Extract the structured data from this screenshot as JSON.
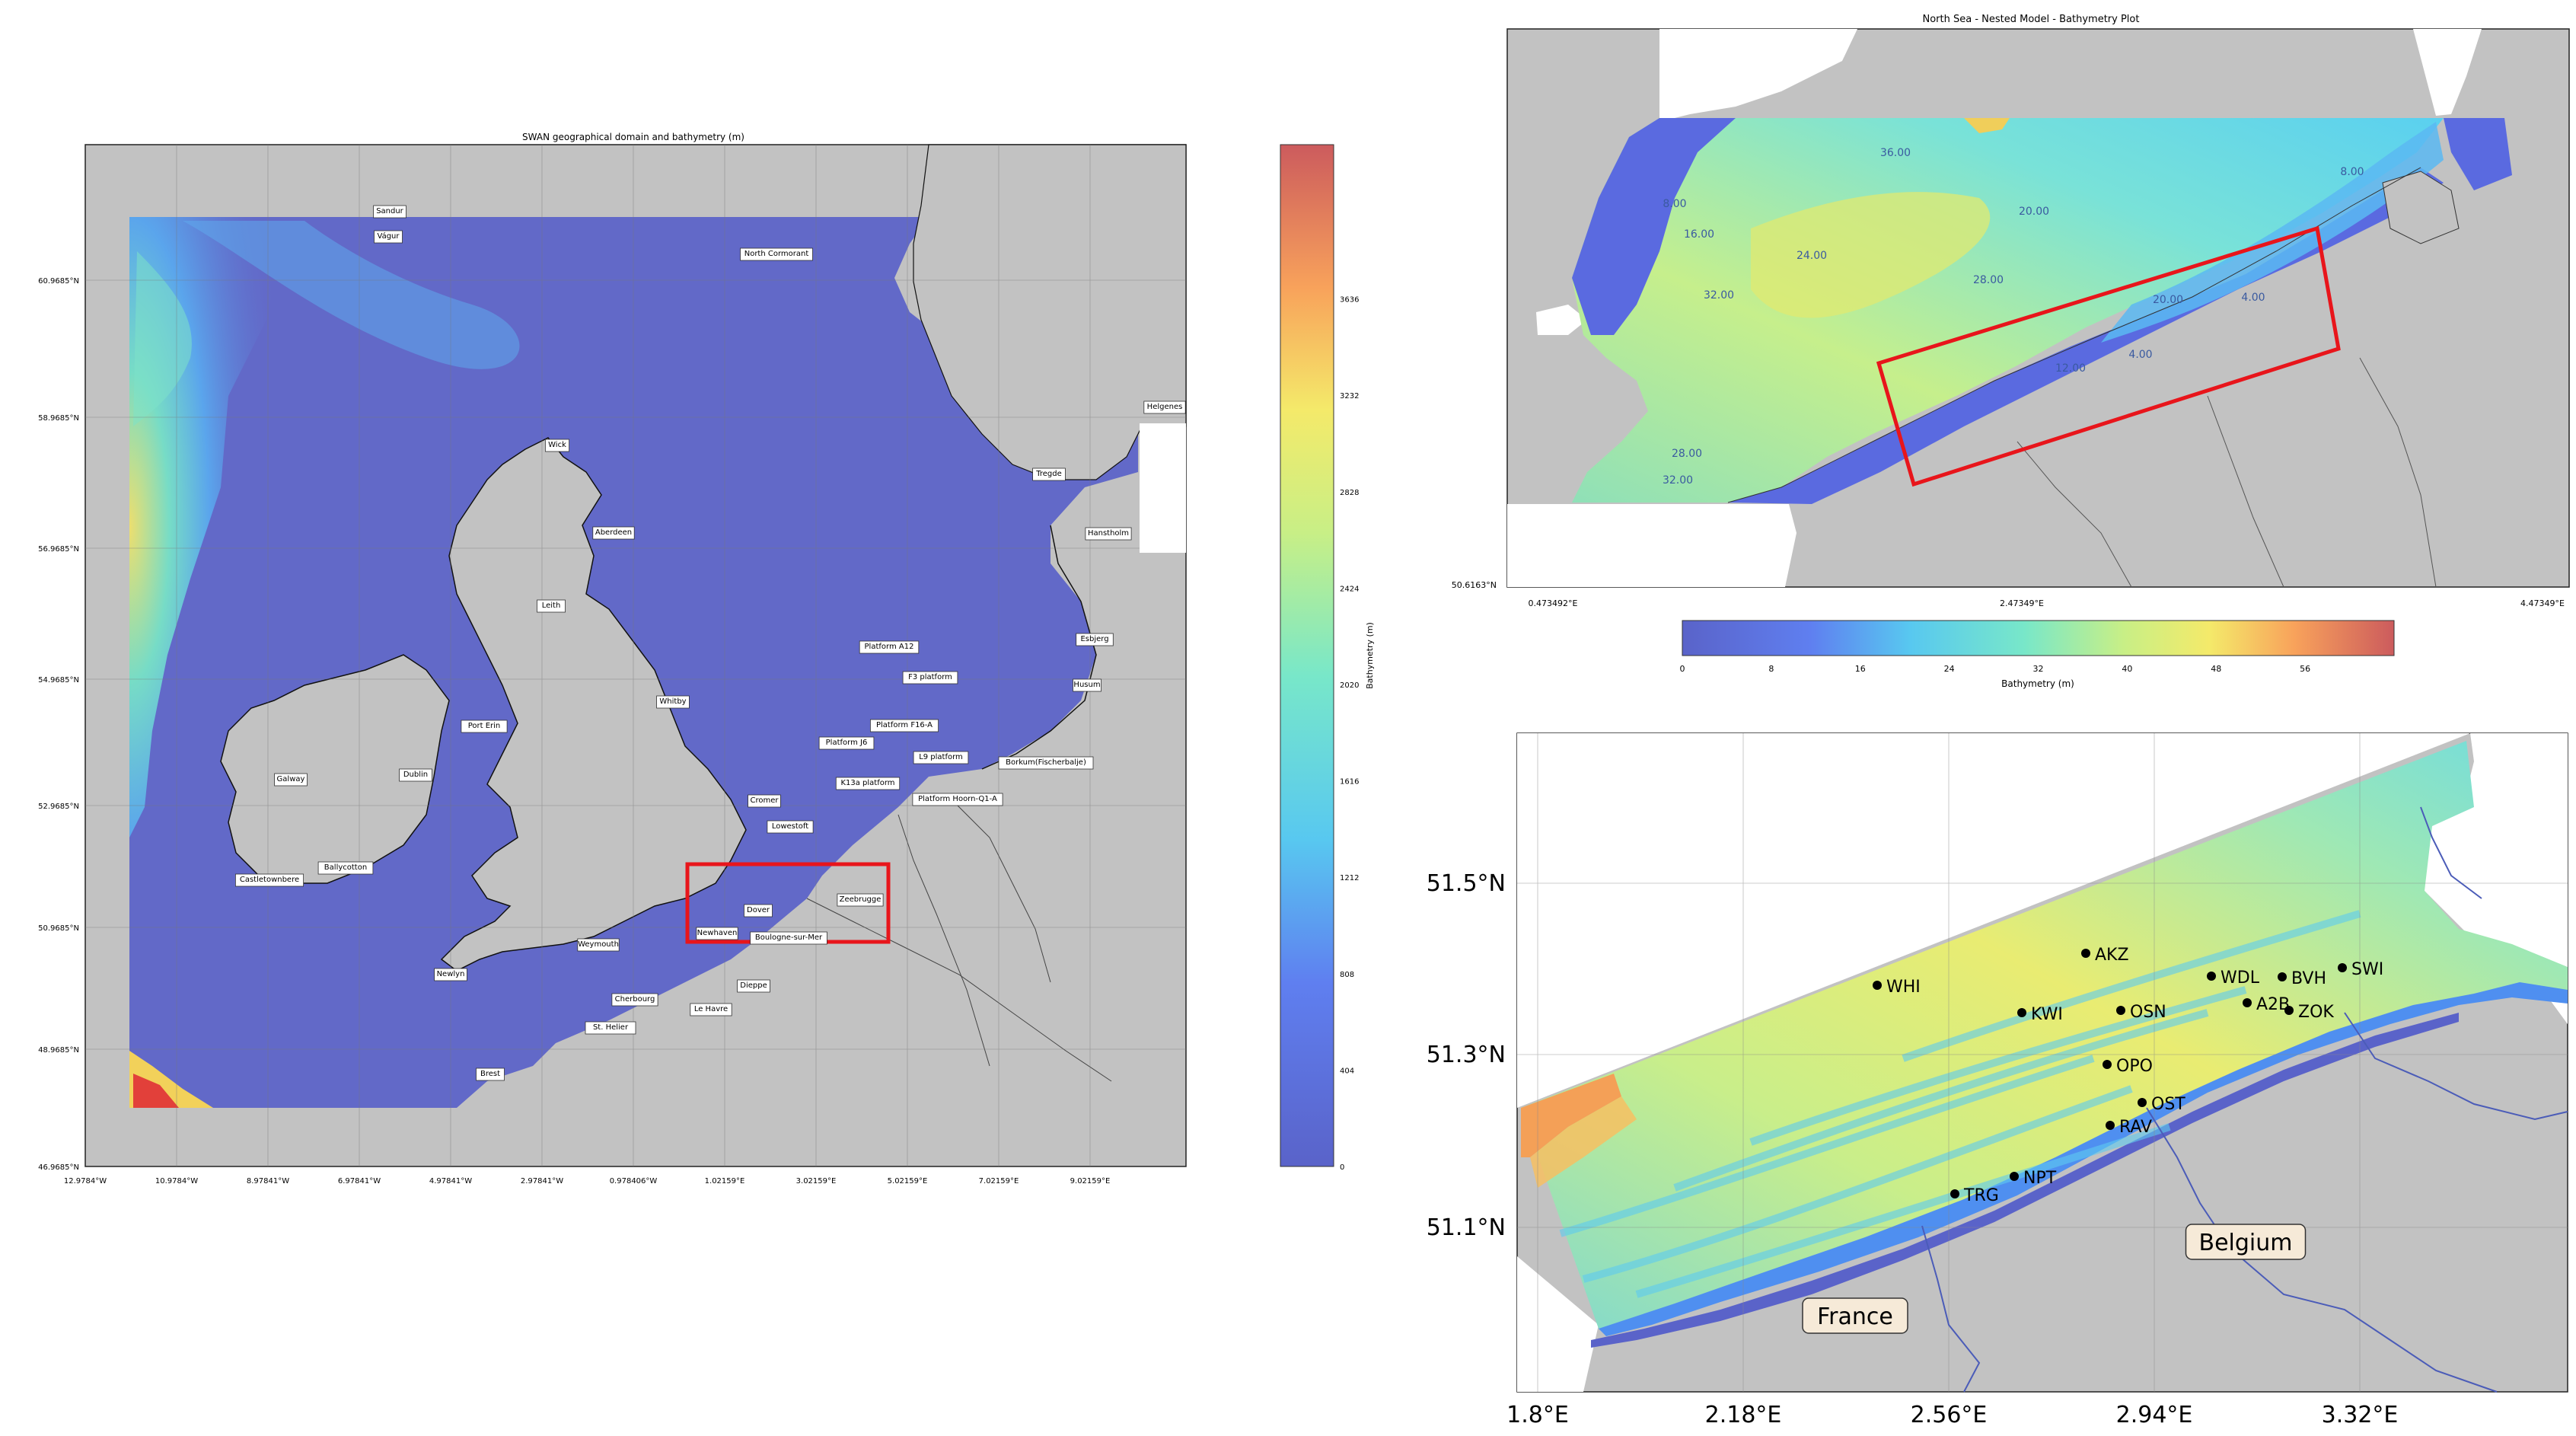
{
  "panel_a": {
    "title": "SWAN geographical domain and bathymetry (m)",
    "lat_ticks": [
      "60.9685°N",
      "58.9685°N",
      "56.9685°N",
      "54.9685°N",
      "52.9685°N",
      "50.9685°N",
      "48.9685°N",
      "46.9685°N"
    ],
    "lon_ticks": [
      "12.9784°W",
      "10.9784°W",
      "8.97841°W",
      "6.97841°W",
      "4.97841°W",
      "2.97841°W",
      "0.978406°W",
      "1.02159°E",
      "3.02159°E",
      "5.02159°E",
      "7.02159°E",
      "9.02159°E"
    ],
    "colorbar_label": "Bathymetry (m)",
    "colorbar_ticks": [
      "0",
      "404",
      "808",
      "1212",
      "1616",
      "2020",
      "2424",
      "2828",
      "3232",
      "3636"
    ],
    "places": [
      "Sandur",
      "Vágur",
      "North Cormorant",
      "Helgenes",
      "Wick",
      "Tregde",
      "Aberdeen",
      "Hanstholm",
      "Leith",
      "Platform A12",
      "Esbjerg",
      "F3 platform",
      "Husum",
      "Whitby",
      "Platform F16-A",
      "Port Erin",
      "Platform J6",
      "L9 platform",
      "Borkum(Fischerbalje)",
      "Galway",
      "Dublin",
      "K13a platform",
      "Cromer",
      "Platform Hoorn-Q1-A",
      "Lowestoft",
      "Ballycotton",
      "Castletownbere",
      "Zeebrugge",
      "Dover",
      "Newhaven",
      "Boulogne-sur-Mer",
      "Weymouth",
      "Newlyn",
      "Cherbourg",
      "Dieppe",
      "St. Helier",
      "Le Havre",
      "Brest"
    ]
  },
  "panel_b": {
    "title": "North Sea - Nested Model - Bathymetry Plot",
    "lat_tick": "50.6163°N",
    "lon_ticks": [
      "0.473492°E",
      "2.47349°E",
      "4.47349°E"
    ],
    "contour_labels": [
      "36.00",
      "8.00",
      "16.00",
      "24.00",
      "32.00",
      "20.00",
      "28.00",
      "20.00",
      "12.00",
      "4.00",
      "8.00",
      "28.00",
      "32.00",
      "4.00"
    ],
    "colorbar_label": "Bathymetry (m)",
    "colorbar_ticks": [
      "0",
      "8",
      "16",
      "24",
      "32",
      "40",
      "48",
      "56"
    ]
  },
  "panel_c": {
    "lat_ticks": [
      "51.5°N",
      "51.3°N",
      "51.1°N"
    ],
    "lon_ticks": [
      "1.8°E",
      "2.18°E",
      "2.56°E",
      "2.94°E",
      "3.32°E"
    ],
    "stations": [
      "WHI",
      "AKZ",
      "KWI",
      "OSN",
      "WDL",
      "BVH",
      "SWI",
      "A2B",
      "ZOK",
      "OPO",
      "OST",
      "RAV",
      "NPT",
      "TRG"
    ],
    "countries": [
      "France",
      "Belgium"
    ]
  },
  "colors": {
    "land": "#c2c2c2",
    "deep_sea": "#6269c8",
    "highlight_box": "#e8151b"
  }
}
